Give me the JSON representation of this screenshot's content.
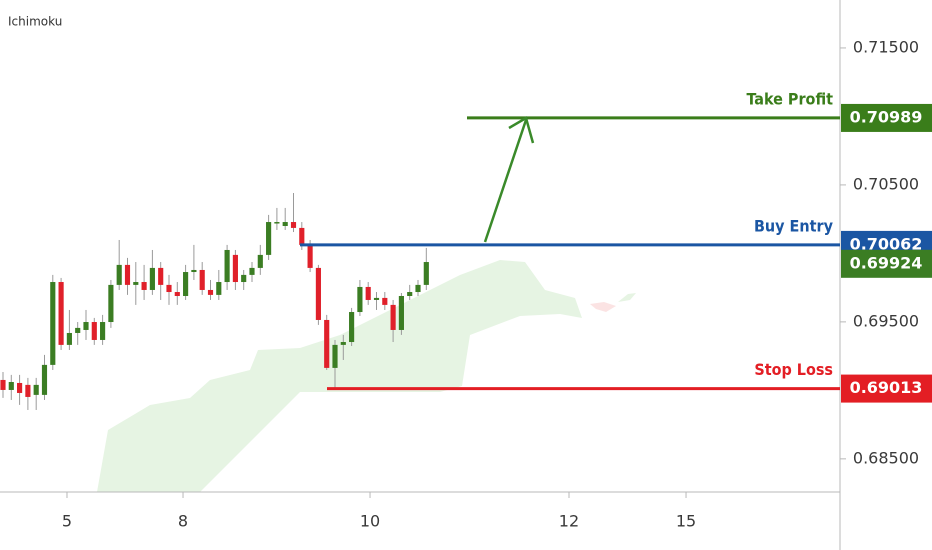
{
  "chart_data": {
    "type": "candlestick",
    "indicator": "Ichimoku",
    "x": [
      0,
      1,
      2,
      3,
      4,
      5,
      6,
      7,
      8,
      9,
      10,
      11,
      12,
      13,
      14,
      15,
      16,
      17,
      18,
      19,
      20,
      21,
      22,
      23,
      24,
      25,
      26,
      27,
      28,
      29,
      30,
      31,
      32,
      33,
      34,
      35,
      36,
      37,
      38,
      39,
      40,
      41,
      42,
      43,
      44,
      45,
      46,
      47,
      48,
      49,
      50,
      51
    ],
    "open": [
      0.69076,
      0.69003,
      0.69054,
      0.6904,
      0.68967,
      0.68967,
      0.69186,
      0.69791,
      0.69332,
      0.69419,
      0.69441,
      0.69499,
      0.69368,
      0.69499,
      0.6977,
      0.69916,
      0.6977,
      0.69791,
      0.69733,
      0.69894,
      0.6977,
      0.69718,
      0.69689,
      0.69864,
      0.69879,
      0.69733,
      0.69697,
      0.69791,
      0.69989,
      0.69791,
      0.69843,
      0.69894,
      0.69989,
      0.70229,
      0.702,
      0.70229,
      0.70186,
      0.70062,
      0.69894,
      0.69514,
      0.69164,
      0.69332,
      0.69353,
      0.69572,
      0.69755,
      0.6966,
      0.69675,
      0.69624,
      0.69441,
      0.69689,
      0.69718,
      0.6977
    ],
    "high": [
      0.69134,
      0.69113,
      0.69113,
      0.69091,
      0.69091,
      0.69259,
      0.69843,
      0.69821,
      0.69587,
      0.69499,
      0.69587,
      0.69529,
      0.69551,
      0.69806,
      0.70098,
      0.69967,
      0.69937,
      0.69916,
      0.70025,
      0.69937,
      0.69843,
      0.69791,
      0.69916,
      0.70062,
      0.69937,
      0.69806,
      0.69879,
      0.70062,
      0.70025,
      0.69879,
      0.69937,
      0.70062,
      0.70281,
      0.70332,
      0.70332,
      0.70441,
      0.70229,
      0.70098,
      0.69916,
      0.69551,
      0.69368,
      0.69405,
      0.69602,
      0.69806,
      0.69791,
      0.69718,
      0.69718,
      0.6966,
      0.69711,
      0.6977,
      0.69806,
      0.7004
    ],
    "low": [
      0.68945,
      0.6893,
      0.68894,
      0.68857,
      0.68857,
      0.6893,
      0.69149,
      0.69295,
      0.69295,
      0.69332,
      0.69368,
      0.69332,
      0.69332,
      0.69456,
      0.69733,
      0.69697,
      0.69624,
      0.6966,
      0.69697,
      0.6966,
      0.69624,
      0.69624,
      0.6966,
      0.69806,
      0.69697,
      0.6966,
      0.6966,
      0.69733,
      0.69733,
      0.69733,
      0.69791,
      0.69843,
      0.69952,
      0.70171,
      0.70171,
      0.70156,
      0.70025,
      0.69864,
      0.69478,
      0.69149,
      0.69018,
      0.69222,
      0.69324,
      0.69543,
      0.69624,
      0.69587,
      0.69587,
      0.69353,
      0.69405,
      0.6966,
      0.69689,
      0.69733
    ],
    "close": [
      0.69003,
      0.69061,
      0.68981,
      0.68952,
      0.6904,
      0.69186,
      0.69791,
      0.69332,
      0.69419,
      0.69456,
      0.69499,
      0.69368,
      0.69499,
      0.6977,
      0.69916,
      0.6977,
      0.69791,
      0.69733,
      0.69894,
      0.6977,
      0.69718,
      0.69689,
      0.69864,
      0.69879,
      0.69733,
      0.69697,
      0.69791,
      0.70025,
      0.69791,
      0.69843,
      0.69894,
      0.69989,
      0.70229,
      0.70229,
      0.70229,
      0.70186,
      0.70062,
      0.69894,
      0.69514,
      0.69164,
      0.69332,
      0.69353,
      0.69572,
      0.69755,
      0.6966,
      0.69675,
      0.69624,
      0.69441,
      0.69689,
      0.69718,
      0.6977,
      0.69937
    ],
    "up_color": "#3b7d23",
    "down_color": "#e0202a",
    "ylim": [
      0.68258,
      0.7185
    ],
    "yticks": [
      {
        "value": 0.685,
        "label": "0.68500"
      },
      {
        "value": 0.695,
        "label": "0.69500"
      },
      {
        "value": 0.705,
        "label": "0.70500"
      },
      {
        "value": 0.715,
        "label": "0.71500"
      }
    ],
    "xlim": [
      -0.36,
      100.84
    ],
    "xticks": [
      {
        "value": 7.71,
        "label": "5"
      },
      {
        "value": 21.69,
        "label": "8"
      },
      {
        "value": 44.22,
        "label": "10"
      },
      {
        "value": 68.19,
        "label": "12"
      },
      {
        "value": 82.29,
        "label": "15"
      }
    ],
    "levels": [
      {
        "name": "Take Profit",
        "value": 0.70989,
        "color": "#3a7d1a"
      },
      {
        "name": "Buy Entry",
        "value": 0.70062,
        "color": "#1b56a3"
      },
      {
        "name": "Stop Loss",
        "value": 0.69013,
        "color": "#e31e24"
      }
    ],
    "last_price": {
      "value": 0.69924,
      "color": "#3b7d23"
    }
  }
}
